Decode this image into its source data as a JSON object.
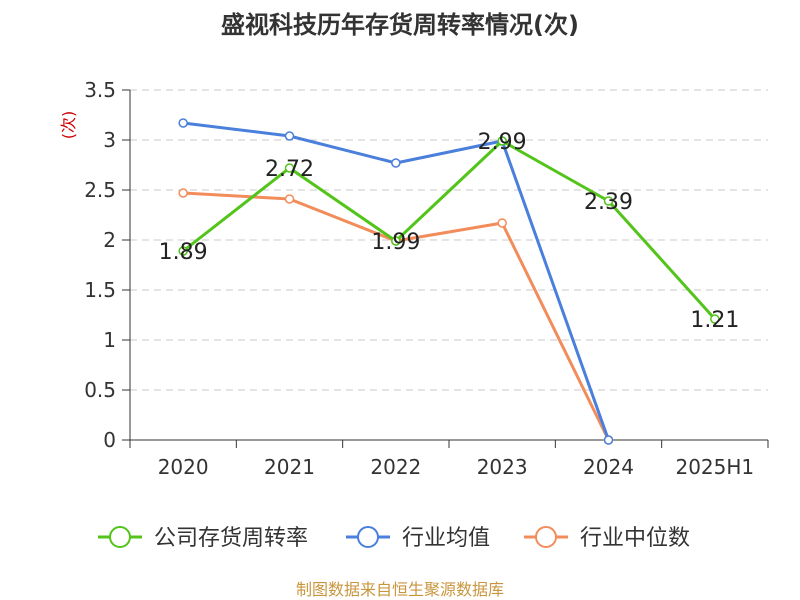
{
  "chart_data": {
    "type": "line",
    "title": "盛视科技历年存货周转率情况(次)",
    "ylabel": "(次)",
    "categories": [
      "2020",
      "2021",
      "2022",
      "2023",
      "2024",
      "2025H1"
    ],
    "ylim": [
      0,
      3.5
    ],
    "yticks": [
      "0",
      "0.5",
      "1",
      "1.5",
      "2",
      "2.5",
      "3",
      "3.5"
    ],
    "grid": true,
    "legend_position": "bottom",
    "series": [
      {
        "name": "公司存货周转率",
        "color": "#52c41a",
        "values": [
          1.89,
          2.72,
          1.99,
          2.99,
          2.39,
          1.21
        ],
        "labels": [
          "1.89",
          "2.72",
          "1.99",
          "2.99",
          "2.39",
          "1.21"
        ]
      },
      {
        "name": "行业均值",
        "color": "#4a7fdc",
        "values": [
          3.17,
          3.04,
          2.77,
          2.99,
          0,
          null
        ]
      },
      {
        "name": "行业中位数",
        "color": "#f28c5a",
        "values": [
          2.47,
          2.41,
          1.99,
          2.17,
          0,
          null
        ]
      }
    ]
  },
  "source": {
    "text": "制图数据来自恒生聚源数据库",
    "color": "#c8963e"
  },
  "unit_color": "#cc0000"
}
